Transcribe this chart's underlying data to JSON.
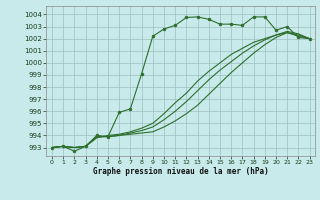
{
  "xlabel": "Graphe pression niveau de la mer (hPa)",
  "bg_color": "#c8eaea",
  "grid_color": "#9fbfbf",
  "line_color": "#2d6e2d",
  "xlim": [
    -0.5,
    23.5
  ],
  "ylim": [
    992.3,
    1004.7
  ],
  "yticks": [
    993,
    994,
    995,
    996,
    997,
    998,
    999,
    1000,
    1001,
    1002,
    1003,
    1004
  ],
  "xticks": [
    0,
    1,
    2,
    3,
    4,
    5,
    6,
    7,
    8,
    9,
    10,
    11,
    12,
    13,
    14,
    15,
    16,
    17,
    18,
    19,
    20,
    21,
    22,
    23
  ],
  "series": [
    {
      "x": [
        0,
        1,
        2,
        3,
        4,
        5,
        6,
        7,
        8,
        9,
        10,
        11,
        12,
        13,
        14,
        15,
        16,
        17,
        18,
        19,
        20,
        21,
        22,
        23
      ],
      "y": [
        993.0,
        993.1,
        992.7,
        993.1,
        994.0,
        993.9,
        995.9,
        996.2,
        999.1,
        1002.2,
        1002.8,
        1003.1,
        1003.75,
        1003.8,
        1003.6,
        1003.2,
        1003.2,
        1003.1,
        1003.8,
        1003.8,
        1002.7,
        1003.0,
        1002.1,
        1002.0
      ],
      "marker": "o",
      "markersize": 2.0,
      "linewidth": 0.8
    },
    {
      "x": [
        0,
        1,
        2,
        3,
        4,
        5,
        6,
        7,
        8,
        9,
        10,
        11,
        12,
        13,
        14,
        15,
        16,
        17,
        18,
        19,
        20,
        21,
        22,
        23
      ],
      "y": [
        993.0,
        993.1,
        993.0,
        993.1,
        993.8,
        994.0,
        994.1,
        994.3,
        994.6,
        995.0,
        995.8,
        996.7,
        997.5,
        998.5,
        999.3,
        1000.0,
        1000.7,
        1001.2,
        1001.7,
        1002.0,
        1002.3,
        1002.5,
        1002.2,
        1002.0
      ],
      "marker": null,
      "markersize": 0,
      "linewidth": 0.8
    },
    {
      "x": [
        0,
        1,
        2,
        3,
        4,
        5,
        6,
        7,
        8,
        9,
        10,
        11,
        12,
        13,
        14,
        15,
        16,
        17,
        18,
        19,
        20,
        21,
        22,
        23
      ],
      "y": [
        993.0,
        993.1,
        993.0,
        993.1,
        993.9,
        993.9,
        994.0,
        994.2,
        994.4,
        994.7,
        995.3,
        996.0,
        996.8,
        997.7,
        998.6,
        999.4,
        1000.1,
        1000.8,
        1001.4,
        1001.9,
        1002.3,
        1002.6,
        1002.4,
        1002.0
      ],
      "marker": null,
      "markersize": 0,
      "linewidth": 0.8
    },
    {
      "x": [
        0,
        1,
        2,
        3,
        4,
        5,
        6,
        7,
        8,
        9,
        10,
        11,
        12,
        13,
        14,
        15,
        16,
        17,
        18,
        19,
        20,
        21,
        22,
        23
      ],
      "y": [
        993.0,
        993.1,
        993.0,
        993.1,
        993.9,
        993.9,
        994.0,
        994.1,
        994.2,
        994.3,
        994.7,
        995.2,
        995.8,
        996.5,
        997.4,
        998.3,
        999.2,
        1000.0,
        1000.8,
        1001.5,
        1002.1,
        1002.5,
        1002.3,
        1002.0
      ],
      "marker": null,
      "markersize": 0,
      "linewidth": 0.8
    }
  ]
}
